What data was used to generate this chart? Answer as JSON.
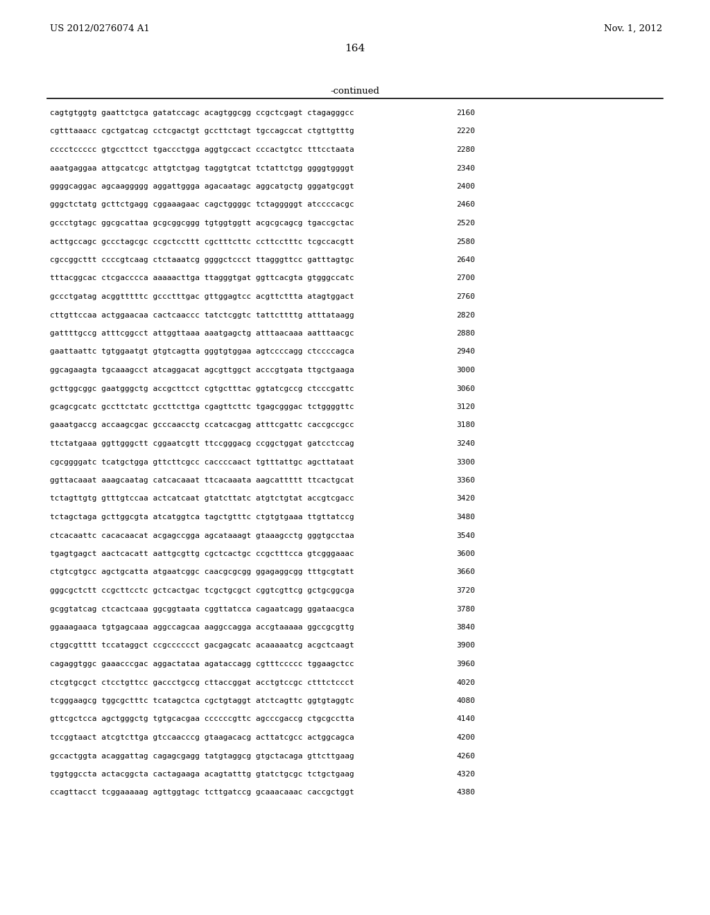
{
  "header_left": "US 2012/0276074 A1",
  "header_right": "Nov. 1, 2012",
  "page_number": "164",
  "continued_label": "-continued",
  "background_color": "#ffffff",
  "text_color": "#000000",
  "sequence_lines": [
    {
      "seq": "cagtgtggtg gaattctgca gatatccagc acagtggcgg ccgctcgagt ctagagggcc",
      "num": "2160"
    },
    {
      "seq": "cgtttaaacc cgctgatcag cctcgactgt gccttctagt tgccagccat ctgttgtttg",
      "num": "2220"
    },
    {
      "seq": "cccctccccc gtgccttcct tgaccctgga aggtgccact cccactgtcc tttcctaata",
      "num": "2280"
    },
    {
      "seq": "aaatgaggaa attgcatcgc attgtctgag taggtgtcat tctattctgg ggggtggggt",
      "num": "2340"
    },
    {
      "seq": "ggggcaggac agcaaggggg aggattggga agacaatagc aggcatgctg gggatgcggt",
      "num": "2400"
    },
    {
      "seq": "gggctctatg gcttctgagg cggaaagaac cagctggggc tctagggggt atccccacgc",
      "num": "2460"
    },
    {
      "seq": "gccctgtagc ggcgcattaa gcgcggcggg tgtggtggtt acgcgcagcg tgaccgctac",
      "num": "2520"
    },
    {
      "seq": "acttgccagc gccctagcgc ccgctccttt cgctttcttc ccttcctttc tcgccacgtt",
      "num": "2580"
    },
    {
      "seq": "cgccggcttt ccccgtcaag ctctaaatcg ggggctccct ttagggttcc gatttagtgc",
      "num": "2640"
    },
    {
      "seq": "tttacggcac ctcgacccca aaaaacttga ttagggtgat ggttcacgta gtgggccatc",
      "num": "2700"
    },
    {
      "seq": "gccctgatag acggtttttc gccctttgac gttggagtcc acgttcttta atagtggact",
      "num": "2760"
    },
    {
      "seq": "cttgttccaa actggaacaa cactcaaccc tatctcggtc tattcttttg atttataagg",
      "num": "2820"
    },
    {
      "seq": "gattttgccg atttcggcct attggttaaa aaatgagctg atttaacaaa aatttaacgc",
      "num": "2880"
    },
    {
      "seq": "gaattaattc tgtggaatgt gtgtcagtta gggtgtggaa agtccccagg ctccccagca",
      "num": "2940"
    },
    {
      "seq": "ggcagaagta tgcaaagcct atcaggacat agcgttggct acccgtgata ttgctgaaga",
      "num": "3000"
    },
    {
      "seq": "gcttggcggc gaatgggctg accgcttcct cgtgctttac ggtatcgccg ctcccgattc",
      "num": "3060"
    },
    {
      "seq": "gcagcgcatc gccttctatc gccttcttga cgagttcttc tgagcgggac tctggggttc",
      "num": "3120"
    },
    {
      "seq": "gaaatgaccg accaagcgac gcccaacctg ccatcacgag atttcgattc caccgccgcc",
      "num": "3180"
    },
    {
      "seq": "ttctatgaaa ggttgggctt cggaatcgtt ttccgggacg ccggctggat gatcctccag",
      "num": "3240"
    },
    {
      "seq": "cgcggggatc tcatgctgga gttcttcgcc caccccaact tgtttattgc agcttataat",
      "num": "3300"
    },
    {
      "seq": "ggttacaaat aaagcaatag catcacaaat ttcacaaata aagcattttt ttcactgcat",
      "num": "3360"
    },
    {
      "seq": "tctagttgtg gtttgtccaa actcatcaat gtatcttatc atgtctgtat accgtcgacc",
      "num": "3420"
    },
    {
      "seq": "tctagctaga gcttggcgta atcatggtca tagctgtttc ctgtgtgaaa ttgttatccg",
      "num": "3480"
    },
    {
      "seq": "ctcacaattc cacacaacat acgagccgga agcataaagt gtaaagcctg gggtgcctaa",
      "num": "3540"
    },
    {
      "seq": "tgagtgagct aactcacatt aattgcgttg cgctcactgc ccgctttcca gtcgggaaac",
      "num": "3600"
    },
    {
      "seq": "ctgtcgtgcc agctgcatta atgaatcggc caacgcgcgg ggagaggcgg tttgcgtatt",
      "num": "3660"
    },
    {
      "seq": "gggcgctctt ccgcttcctc gctcactgac tcgctgcgct cggtcgttcg gctgcggcga",
      "num": "3720"
    },
    {
      "seq": "gcggtatcag ctcactcaaa ggcggtaata cggttatcca cagaatcagg ggataacgca",
      "num": "3780"
    },
    {
      "seq": "ggaaagaaca tgtgagcaaa aggccagcaa aaggccagga accgtaaaaa ggccgcgttg",
      "num": "3840"
    },
    {
      "seq": "ctggcgtttt tccataggct ccgcccccct gacgagcatc acaaaaatcg acgctcaagt",
      "num": "3900"
    },
    {
      "seq": "cagaggtggc gaaacccgac aggactataa agataccagg cgtttccccc tggaagctcc",
      "num": "3960"
    },
    {
      "seq": "ctcgtgcgct ctcctgttcc gaccctgccg cttaccggat acctgtccgc ctttctccct",
      "num": "4020"
    },
    {
      "seq": "tcgggaagcg tggcgctttc tcatagctca cgctgtaggt atctcagttc ggtgtaggtc",
      "num": "4080"
    },
    {
      "seq": "gttcgctcca agctgggctg tgtgcacgaa ccccccgttc agcccgaccg ctgcgcctta",
      "num": "4140"
    },
    {
      "seq": "tccggtaact atcgtcttga gtccaacccg gtaagacacg acttatcgcc actggcagca",
      "num": "4200"
    },
    {
      "seq": "gccactggta acaggattag cagagcgagg tatgtaggcg gtgctacaga gttcttgaag",
      "num": "4260"
    },
    {
      "seq": "tggtggccta actacggcta cactagaaga acagtatttg gtatctgcgc tctgctgaag",
      "num": "4320"
    },
    {
      "seq": "ccagttacct tcggaaaaag agttggtagc tcttgatccg gcaaacaaac caccgctggt",
      "num": "4380"
    }
  ],
  "header_fontsize": 9.5,
  "page_num_fontsize": 11,
  "continued_fontsize": 9.5,
  "seq_fontsize": 8.0,
  "num_fontsize": 8.0
}
